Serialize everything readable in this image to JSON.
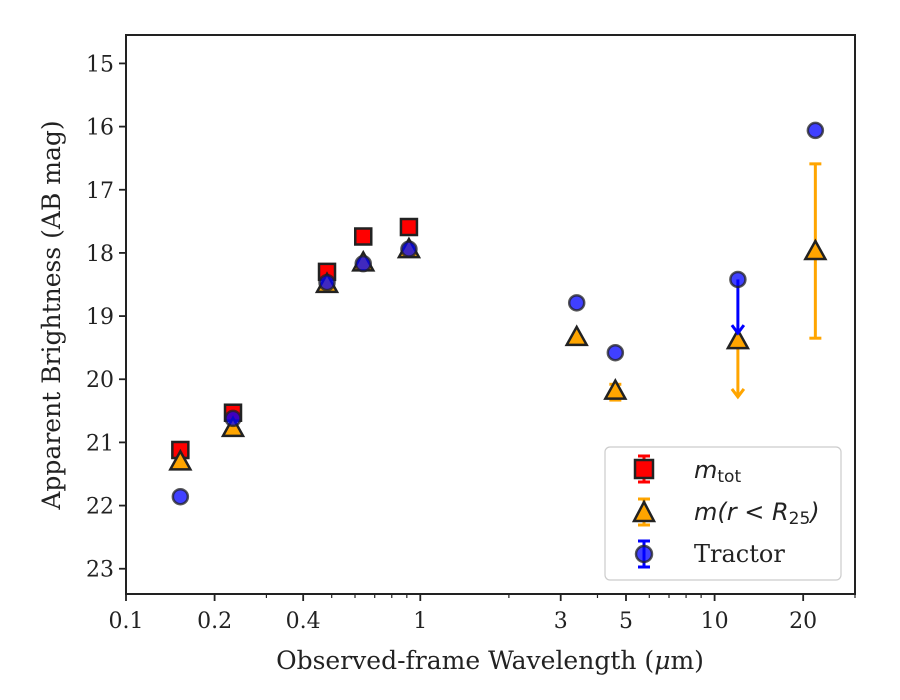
{
  "chart_data": {
    "type": "scatter",
    "xlabel_text": "Observed-frame Wavelength (",
    "xlabel_unit": "μ",
    "xlabel_end": "m)",
    "ylabel": "Apparent Brightness (AB mag)",
    "x_scale": "log",
    "xlim": [
      0.1,
      30
    ],
    "ylim": [
      23.4,
      14.55
    ],
    "y_inverted": true,
    "x_ticks": [
      0.1,
      0.2,
      0.4,
      1,
      3,
      5,
      10,
      20
    ],
    "x_tick_labels": [
      "0.1",
      "0.2",
      "0.4",
      "1",
      "3",
      "5",
      "10",
      "20"
    ],
    "y_ticks": [
      15,
      16,
      17,
      18,
      19,
      20,
      21,
      22,
      23
    ],
    "y_tick_labels": [
      "15",
      "16",
      "17",
      "18",
      "19",
      "20",
      "21",
      "22",
      "23"
    ],
    "grid": false,
    "legend_position": "lower-right",
    "series": [
      {
        "name": "m_tot",
        "label_base": "m",
        "label_sub": "tot",
        "marker": "square",
        "color": "#ff0000",
        "errcolor": "#ff0000",
        "points": [
          {
            "x": 0.153,
            "y": 21.12
          },
          {
            "x": 0.231,
            "y": 20.53
          },
          {
            "x": 0.482,
            "y": 18.3
          },
          {
            "x": 0.64,
            "y": 17.74
          },
          {
            "x": 0.915,
            "y": 17.59
          }
        ]
      },
      {
        "name": "m(r<R25)",
        "label_base": "m(r < R",
        "label_sub": "25",
        "label_end": ")",
        "marker": "triangle",
        "color": "#ffa500",
        "errcolor": "#ffa500",
        "points": [
          {
            "x": 0.153,
            "y": 21.3
          },
          {
            "x": 0.231,
            "y": 20.77
          },
          {
            "x": 0.482,
            "y": 18.49
          },
          {
            "x": 0.64,
            "y": 18.15
          },
          {
            "x": 0.915,
            "y": 17.94
          },
          {
            "x": 3.4,
            "y": 19.33
          },
          {
            "x": 4.6,
            "y": 20.18,
            "err_low": 0.1,
            "err_high": 0.15
          },
          {
            "x": 12.0,
            "y": 19.38,
            "upper_limit_to": 20.28
          },
          {
            "x": 22.0,
            "y": 17.97,
            "err_low": 1.38,
            "err_high": 1.38
          }
        ]
      },
      {
        "name": "Tractor",
        "marker": "circle",
        "color": "#0000ff",
        "errcolor": "#0000ff",
        "points": [
          {
            "x": 0.153,
            "y": 21.86
          },
          {
            "x": 0.231,
            "y": 20.62
          },
          {
            "x": 0.482,
            "y": 18.47
          },
          {
            "x": 0.64,
            "y": 18.17
          },
          {
            "x": 0.915,
            "y": 17.94
          },
          {
            "x": 3.4,
            "y": 18.79
          },
          {
            "x": 4.6,
            "y": 19.58
          },
          {
            "x": 12.0,
            "y": 18.42,
            "upper_limit_to": 19.27
          },
          {
            "x": 22.0,
            "y": 16.06
          }
        ]
      }
    ]
  }
}
